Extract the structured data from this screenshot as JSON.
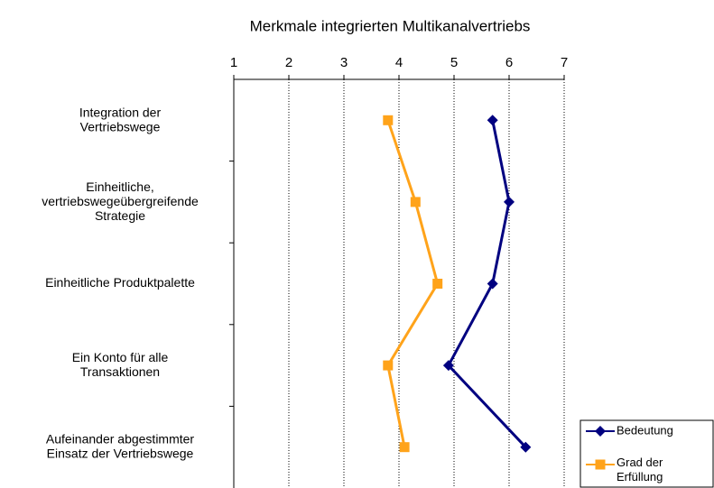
{
  "chart_data": {
    "type": "line",
    "orientation": "horizontal",
    "title": "Merkmale integrierten Multikanalvertriebs",
    "categories": [
      "Integration der\nVertriebswege",
      "Einheitliche,\nvertriebswegeübergreifende\nStrategie",
      "Einheitliche Produktpalette",
      "Ein Konto für alle\nTransaktionen",
      "Aufeinander abgestimmter\nEinsatz der Vertriebswege"
    ],
    "series": [
      {
        "name": "Bedeutung",
        "color": "#000080",
        "marker": "diamond",
        "values": [
          5.7,
          6.0,
          5.7,
          4.9,
          6.3
        ]
      },
      {
        "name": "Grad der\nErfüllung",
        "color": "#ffa31a",
        "marker": "square",
        "values": [
          3.8,
          4.3,
          4.7,
          3.8,
          4.1
        ]
      }
    ],
    "xlim": [
      1,
      7
    ],
    "xticks": [
      1,
      2,
      3,
      4,
      5,
      6,
      7
    ],
    "grid": true,
    "legend": "bottom-right"
  }
}
